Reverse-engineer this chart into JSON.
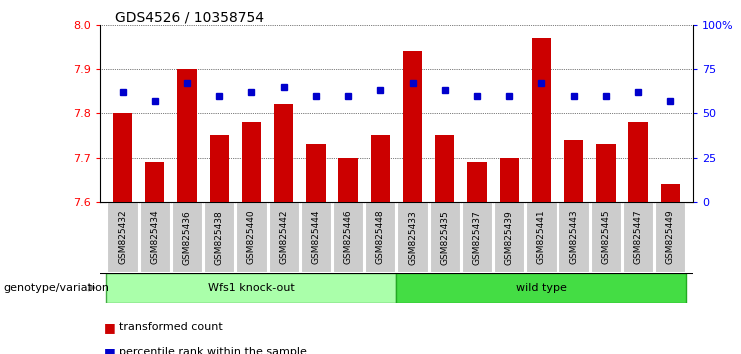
{
  "title": "GDS4526 / 10358754",
  "samples": [
    "GSM825432",
    "GSM825434",
    "GSM825436",
    "GSM825438",
    "GSM825440",
    "GSM825442",
    "GSM825444",
    "GSM825446",
    "GSM825448",
    "GSM825433",
    "GSM825435",
    "GSM825437",
    "GSM825439",
    "GSM825441",
    "GSM825443",
    "GSM825445",
    "GSM825447",
    "GSM825449"
  ],
  "bar_values": [
    7.8,
    7.69,
    7.9,
    7.75,
    7.78,
    7.82,
    7.73,
    7.7,
    7.75,
    7.94,
    7.75,
    7.69,
    7.7,
    7.97,
    7.74,
    7.73,
    7.78,
    7.64
  ],
  "percentile_values": [
    62,
    57,
    67,
    60,
    62,
    65,
    60,
    60,
    63,
    67,
    63,
    60,
    60,
    67,
    60,
    60,
    62,
    57
  ],
  "bar_color": "#cc0000",
  "percentile_color": "#0000cc",
  "ylim_left": [
    7.6,
    8.0
  ],
  "ylim_right": [
    0,
    100
  ],
  "yticks_left": [
    7.6,
    7.7,
    7.8,
    7.9,
    8.0
  ],
  "yticks_right": [
    0,
    25,
    50,
    75,
    100
  ],
  "ytick_labels_right": [
    "0",
    "25",
    "50",
    "75",
    "100%"
  ],
  "group1_label": "Wfs1 knock-out",
  "group2_label": "wild type",
  "group1_count": 9,
  "group2_count": 9,
  "group1_color": "#aaffaa",
  "group2_color": "#44dd44",
  "xlabel_left": "genotype/variation",
  "legend_bar": "transformed count",
  "legend_dot": "percentile rank within the sample",
  "tick_bg_color": "#cccccc",
  "plot_bg_color": "#ffffff"
}
